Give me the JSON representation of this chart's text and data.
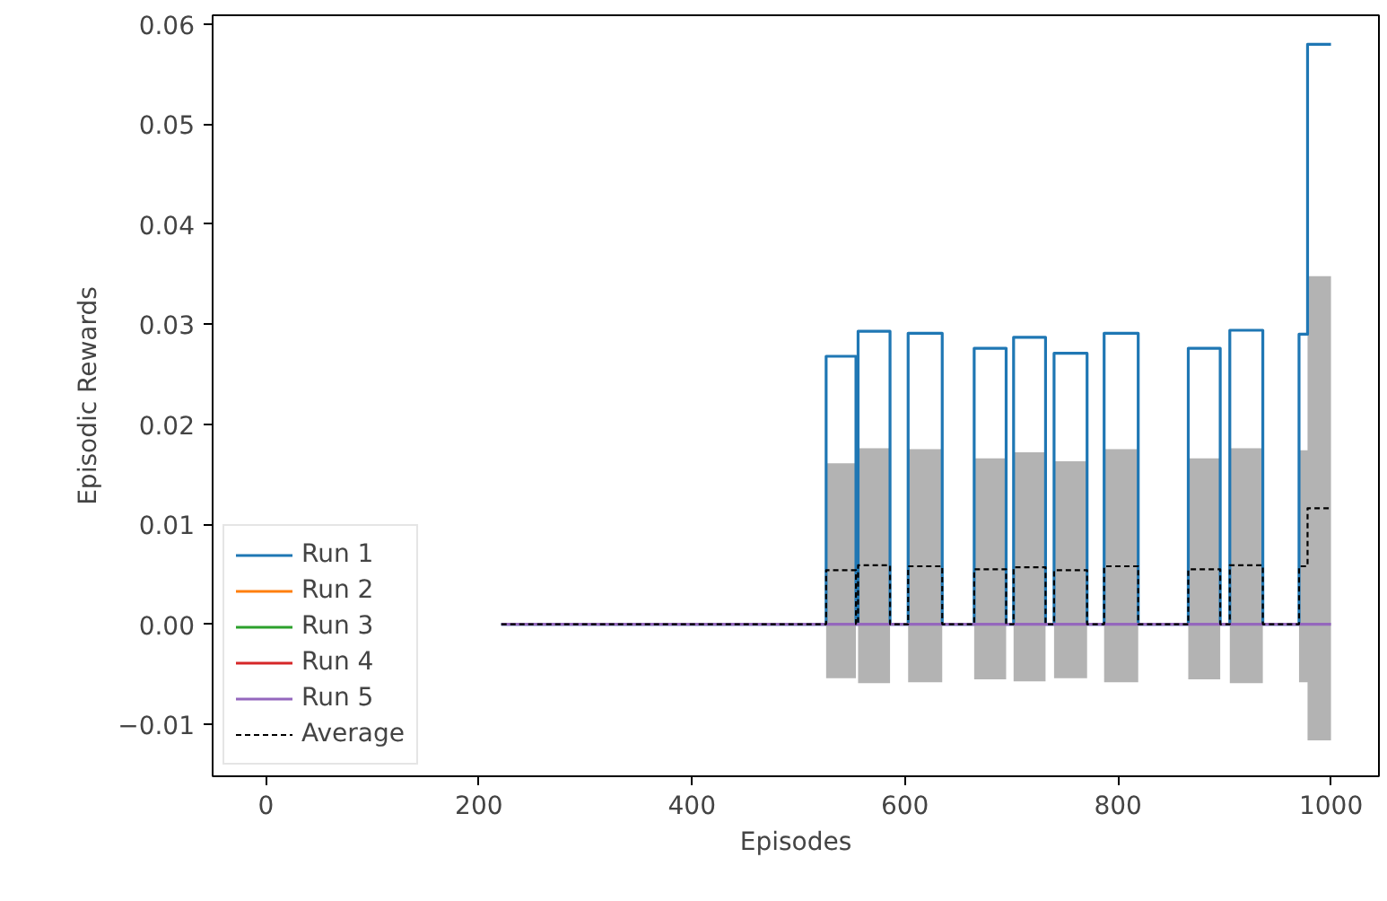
{
  "chart_data": {
    "type": "step",
    "xlabel": "Episodes",
    "ylabel": "Episodic Rewards",
    "xlim": [
      -50,
      1045
    ],
    "ylim": [
      -0.0152,
      0.0609
    ],
    "xticks": [
      0,
      200,
      400,
      600,
      800,
      1000
    ],
    "yticks": [
      {
        "value": -0.01,
        "label": "−0.01"
      },
      {
        "value": 0,
        "label": "0.00"
      },
      {
        "value": 0.01,
        "label": "0.01"
      },
      {
        "value": 0.02,
        "label": "0.02"
      },
      {
        "value": 0.03,
        "label": "0.03"
      },
      {
        "value": 0.04,
        "label": "0.04"
      },
      {
        "value": 0.05,
        "label": "0.05"
      },
      {
        "value": 0.06,
        "label": "0.06"
      }
    ],
    "grid": false,
    "legend": "bottom left",
    "line_style": "solid",
    "series": [
      {
        "name": "Run 1",
        "color": "#1f77b4",
        "x": [
          221,
          526,
          554,
          556,
          586,
          603,
          635,
          665,
          695,
          702,
          732,
          740,
          771,
          787,
          819,
          866,
          896,
          905,
          936,
          970,
          978,
          1000
        ],
        "values": [
          0,
          0.0268,
          0,
          0.0293,
          0,
          0.0291,
          0,
          0.0276,
          0,
          0.0287,
          0,
          0.0271,
          0,
          0.0291,
          0,
          0.0276,
          0,
          0.0294,
          0,
          0.029,
          0.058,
          0.058
        ]
      },
      {
        "name": "Run 2",
        "color": "#ff7f0e"
      },
      {
        "name": "Run 3",
        "color": "#2ca02c"
      },
      {
        "name": "Run 4",
        "color": "#d62728"
      },
      {
        "name": "Run 5",
        "color": "#9467bd",
        "x": [
          221,
          1000
        ],
        "values": [
          0,
          0
        ]
      },
      {
        "name": "Average",
        "color": "#000000",
        "line_style": "dashed",
        "x": [
          221,
          526,
          554,
          556,
          586,
          603,
          635,
          665,
          695,
          702,
          732,
          740,
          771,
          787,
          819,
          866,
          896,
          905,
          936,
          970,
          978,
          1000
        ],
        "values": [
          0,
          0.0054,
          0,
          0.0059,
          0,
          0.0058,
          0,
          0.0055,
          0,
          0.0057,
          0,
          0.0054,
          0,
          0.0058,
          0,
          0.0055,
          0,
          0.0059,
          0,
          0.0058,
          0.0116,
          0.0116
        ],
        "upper": [
          0,
          0.0161,
          0,
          0.0176,
          0,
          0.0175,
          0,
          0.0166,
          0,
          0.0172,
          0,
          0.0163,
          0,
          0.0175,
          0,
          0.0166,
          0,
          0.0176,
          0,
          0.0174,
          0.0348,
          0.0348
        ],
        "lower": [
          0,
          -0.0054,
          0,
          -0.0059,
          0,
          -0.0058,
          0,
          -0.0055,
          0,
          -0.0057,
          0,
          -0.0054,
          0,
          -0.0058,
          0,
          -0.0055,
          0,
          -0.0059,
          0,
          -0.0058,
          -0.0116,
          -0.0116
        ]
      }
    ]
  }
}
